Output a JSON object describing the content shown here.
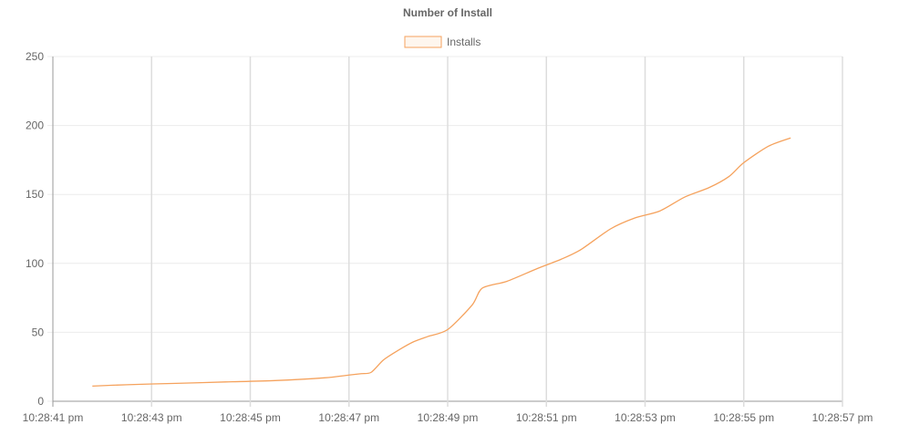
{
  "chart_data": {
    "type": "line",
    "title": "Number of Install",
    "xlabel": "",
    "ylabel": "",
    "ylim": [
      0,
      250
    ],
    "yticks": [
      "0",
      "50",
      "100",
      "150",
      "200",
      "250"
    ],
    "yticks_values": [
      0,
      50,
      100,
      150,
      200,
      250
    ],
    "xticks": [
      "10:28:41 pm",
      "10:28:43 pm",
      "10:28:45 pm",
      "10:28:47 pm",
      "10:28:49 pm",
      "10:28:51 pm",
      "10:28:53 pm",
      "10:28:55 pm",
      "10:28:57 pm"
    ],
    "xlim_seconds": [
      41,
      57
    ],
    "grid": true,
    "legend_position": "top",
    "series": [
      {
        "name": "Installs",
        "color": "#f5a25d",
        "x_seconds": [
          41.8,
          42.5,
          43.5,
          44.5,
          45.5,
          46.5,
          47.0,
          47.25,
          47.45,
          47.7,
          48.0,
          48.3,
          48.6,
          49.0,
          49.5,
          49.7,
          50.2,
          50.8,
          51.3,
          51.7,
          52.3,
          52.8,
          53.3,
          53.8,
          54.3,
          54.7,
          55.0,
          55.5,
          55.95
        ],
        "values": [
          11,
          12,
          13,
          14,
          15,
          17,
          19,
          20,
          21,
          30,
          37,
          43,
          47,
          52,
          70,
          82,
          87,
          96,
          103,
          110,
          125,
          133,
          138,
          148,
          155,
          163,
          173,
          185,
          191
        ]
      }
    ]
  }
}
